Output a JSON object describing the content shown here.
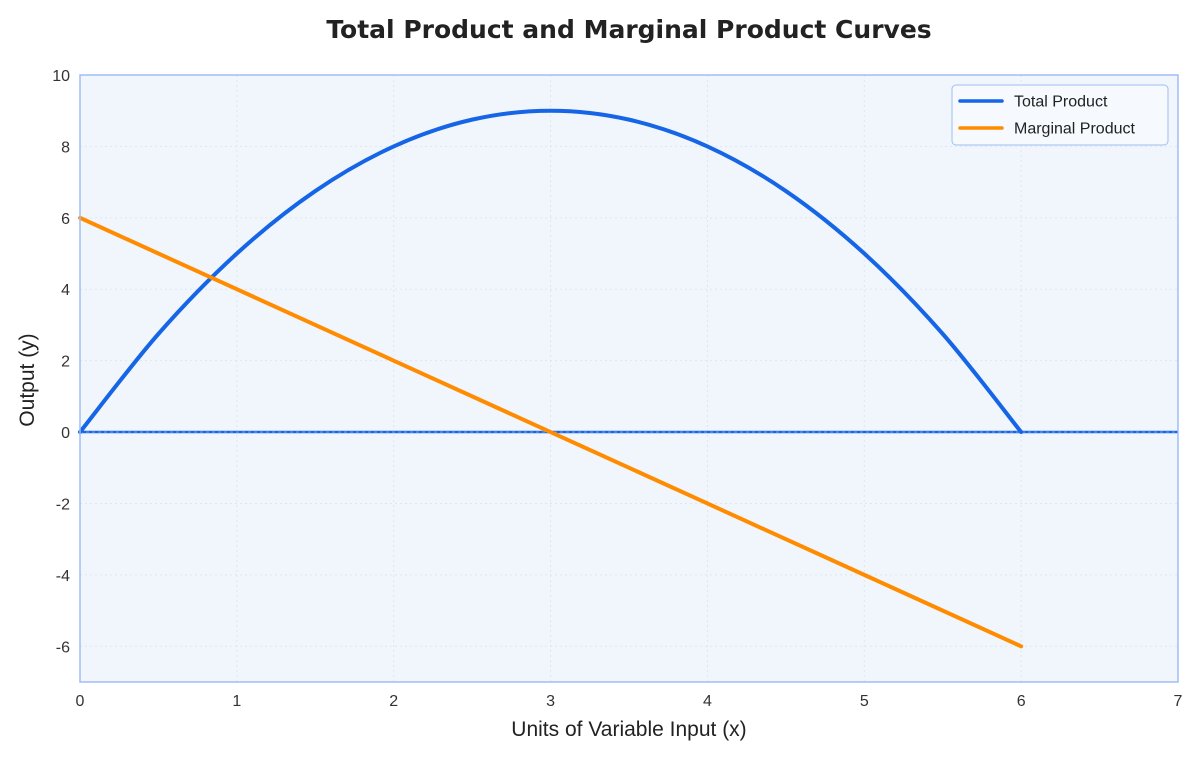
{
  "chart_data": {
    "type": "line",
    "title": "Total Product and Marginal Product Curves",
    "xlabel": "Units of Variable Input (x)",
    "ylabel": "Output (y)",
    "xlim": [
      0,
      7
    ],
    "ylim": [
      -7,
      10
    ],
    "xticks": [
      "0",
      "1",
      "2",
      "3",
      "4",
      "5",
      "6",
      "7"
    ],
    "yticks": [
      "-6",
      "-4",
      "-2",
      "0",
      "2",
      "4",
      "6",
      "8",
      "10"
    ],
    "grid": true,
    "legend_position": "top-right",
    "series": [
      {
        "name": "Total Product",
        "color": "#1565e6",
        "x": [
          0,
          0.5,
          1,
          1.5,
          2,
          2.5,
          3,
          3.5,
          4,
          4.5,
          5,
          5.5,
          6
        ],
        "values": [
          0,
          2.75,
          5,
          6.75,
          8,
          8.75,
          9,
          8.75,
          8,
          6.75,
          5,
          2.75,
          0
        ]
      },
      {
        "name": "Marginal Product",
        "color": "#ff8c00",
        "x": [
          0,
          1,
          2,
          3,
          4,
          5,
          6
        ],
        "values": [
          6,
          4,
          2,
          0,
          -2,
          -4,
          -6
        ]
      }
    ],
    "reference_lines": [
      {
        "axis": "y",
        "value": 0,
        "color": "#1565e6",
        "style": "dashed"
      }
    ],
    "colors": {
      "plot_background": "#f0f6fc",
      "plot_border": "#9fbdf5",
      "grid": "#dde6f0"
    }
  }
}
